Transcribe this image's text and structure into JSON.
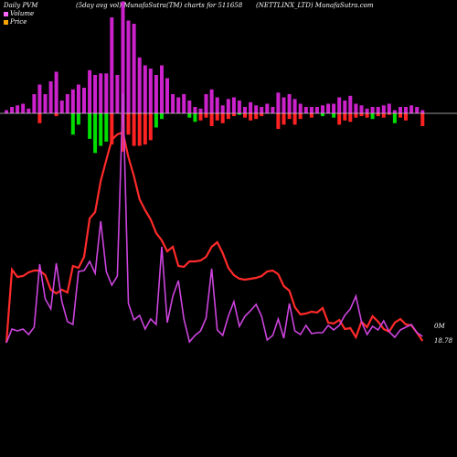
{
  "header": {
    "left": "Daily PVM",
    "mid": "(5day avg vol) MunafaSutra(TM) charts for 511658",
    "right": "(NETTLINX_LTD) MunafaSutra.com"
  },
  "legend": {
    "volume_label": "Volume",
    "price_label": "Price",
    "volume_color": "#ff66ff",
    "price_color": "#ffa500"
  },
  "end_labels": {
    "volume": "0M",
    "price": "18.78"
  },
  "colors": {
    "background": "#000000",
    "baseline": "#cccccc",
    "vol_bar_top": "#cc22cc",
    "up_bar": "#00dd00",
    "down_bar": "#ff2222",
    "price_line": "#ff2a2a",
    "volume_line": "#cc44dd"
  },
  "chart_data": {
    "type": "line",
    "n": 76,
    "vol_top": [
      2,
      4,
      5,
      6,
      3,
      12,
      18,
      12,
      20,
      26,
      8,
      12,
      15,
      18,
      16,
      27,
      24,
      25,
      25,
      60,
      24,
      70,
      58,
      56,
      35,
      30,
      28,
      24,
      30,
      22,
      12,
      10,
      12,
      8,
      4,
      3,
      12,
      15,
      10,
      5,
      9,
      10,
      8,
      4,
      7,
      5,
      4,
      6,
      4,
      13,
      10,
      12,
      9,
      6,
      4,
      4,
      4,
      5,
      6,
      6,
      10,
      8,
      11,
      6,
      5,
      3,
      4,
      4,
      5,
      6,
      2,
      4,
      4,
      5,
      4,
      2
    ],
    "pv_bottom": [
      0,
      0,
      0,
      0,
      0,
      0,
      7,
      0,
      0,
      2,
      0,
      0,
      15,
      8,
      0,
      18,
      28,
      23,
      20,
      22,
      0,
      27,
      15,
      23,
      23,
      22,
      19,
      10,
      4,
      0,
      0,
      0,
      0,
      3,
      6,
      5,
      3,
      9,
      5,
      7,
      4,
      2,
      1,
      3,
      5,
      4,
      2,
      0,
      0,
      11,
      8,
      4,
      8,
      4,
      0,
      3,
      0,
      2,
      0,
      3,
      8,
      5,
      6,
      3,
      2,
      3,
      4,
      2,
      3,
      1,
      7,
      3,
      5,
      0,
      0,
      9
    ],
    "pv_up": [
      false,
      false,
      false,
      false,
      false,
      false,
      false,
      false,
      false,
      false,
      false,
      false,
      true,
      true,
      false,
      true,
      true,
      true,
      true,
      false,
      false,
      false,
      false,
      false,
      false,
      false,
      false,
      true,
      true,
      false,
      false,
      false,
      false,
      true,
      true,
      false,
      false,
      false,
      false,
      false,
      false,
      false,
      true,
      false,
      false,
      false,
      false,
      false,
      false,
      false,
      false,
      false,
      false,
      false,
      false,
      false,
      false,
      true,
      false,
      true,
      false,
      false,
      false,
      false,
      false,
      false,
      true,
      false,
      false,
      false,
      true,
      false,
      false,
      false,
      false,
      false
    ],
    "price": [
      375,
      295,
      303,
      302,
      298,
      296,
      296,
      301,
      317,
      321,
      317,
      320,
      291,
      293,
      281,
      239,
      232,
      198,
      175,
      153,
      147,
      145,
      172,
      193,
      218,
      230,
      240,
      255,
      263,
      275,
      270,
      291,
      292,
      286,
      286,
      285,
      281,
      270,
      265,
      277,
      293,
      301,
      305,
      306,
      305,
      304,
      302,
      297,
      296,
      300,
      313,
      318,
      336,
      344,
      343,
      341,
      342,
      337,
      353,
      354,
      350,
      360,
      359,
      369,
      352,
      358,
      346,
      352,
      360,
      363,
      353,
      349,
      355,
      356,
      364,
      373
    ],
    "volume": [
      375,
      360,
      362,
      360,
      366,
      358,
      289,
      327,
      338,
      288,
      330,
      352,
      355,
      297,
      296,
      286,
      299,
      242,
      297,
      312,
      302,
      102,
      332,
      350,
      345,
      360,
      349,
      355,
      270,
      353,
      324,
      307,
      349,
      374,
      367,
      362,
      348,
      294,
      361,
      367,
      346,
      330,
      357,
      346,
      340,
      333,
      346,
      372,
      367,
      349,
      370,
      332,
      362,
      366,
      356,
      365,
      364,
      364,
      356,
      361,
      356,
      345,
      338,
      324,
      352,
      366,
      357,
      361,
      351,
      363,
      369,
      361,
      358,
      355,
      364,
      368
    ]
  }
}
